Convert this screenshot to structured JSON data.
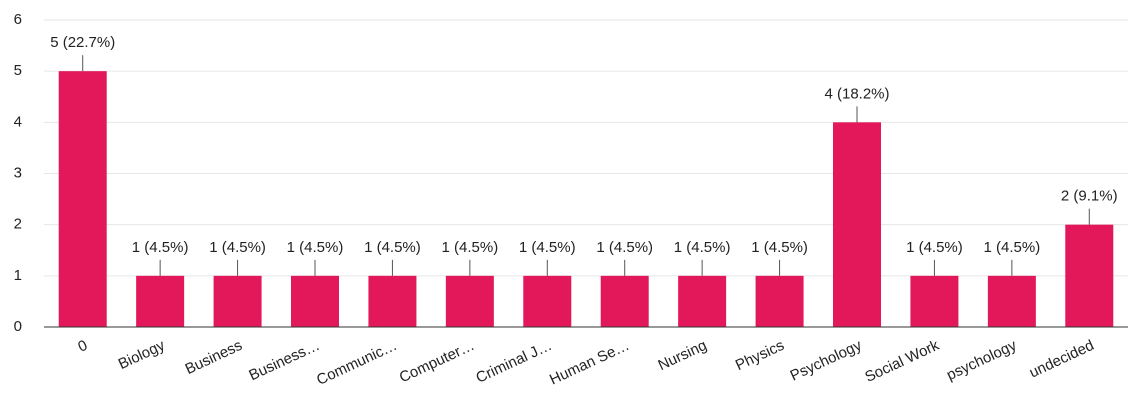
{
  "chart_data": {
    "type": "bar",
    "categories": [
      "0",
      "Biology",
      "Business",
      "Business…",
      "Communic…",
      "Computer…",
      "Criminal J…",
      "Human Se…",
      "Nursing",
      "Physics",
      "Psychology",
      "Social Work",
      "psychology",
      "undecided"
    ],
    "values": [
      5,
      1,
      1,
      1,
      1,
      1,
      1,
      1,
      1,
      1,
      4,
      1,
      1,
      2
    ],
    "value_labels": [
      "5 (22.7%)",
      "1 (4.5%)",
      "1 (4.5%)",
      "1 (4.5%)",
      "1 (4.5%)",
      "1 (4.5%)",
      "1 (4.5%)",
      "1 (4.5%)",
      "1 (4.5%)",
      "1 (4.5%)",
      "4 (18.2%)",
      "1 (4.5%)",
      "1 (4.5%)",
      "2 (9.1%)"
    ],
    "color": "#e2185b",
    "ylim": [
      0,
      6
    ],
    "yticks": [
      0,
      1,
      2,
      3,
      4,
      5,
      6
    ],
    "grid": true
  }
}
